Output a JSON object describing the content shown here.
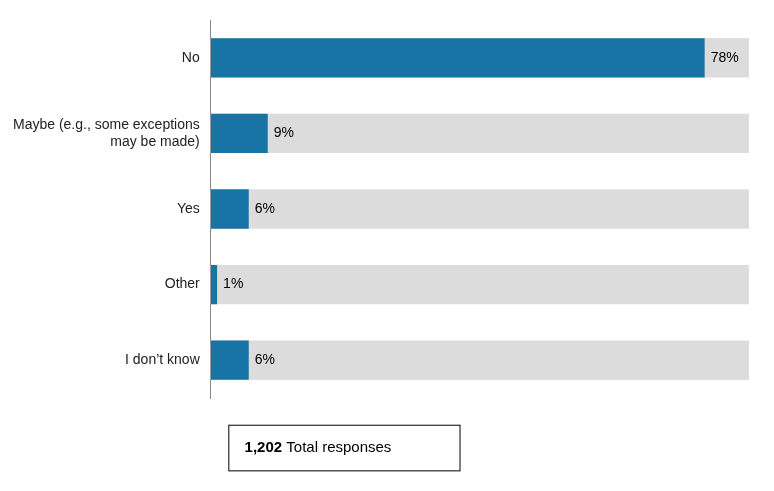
{
  "chart_data": {
    "type": "bar",
    "orientation": "horizontal",
    "categories": [
      "I don’t know",
      "Other",
      "Yes",
      "Maybe (e.g., some exceptions\nmay be made)",
      "No"
    ],
    "values": [
      6,
      1,
      6,
      9,
      78
    ],
    "value_labels": [
      "6%",
      "1%",
      "6%",
      "9%",
      "78%"
    ],
    "data_labels": true,
    "color": "#1874a4",
    "xlim": [
      0,
      85
    ],
    "tick_labels": "y",
    "grid": false,
    "annotations": [
      "1,202 Total responses"
    ]
  }
}
